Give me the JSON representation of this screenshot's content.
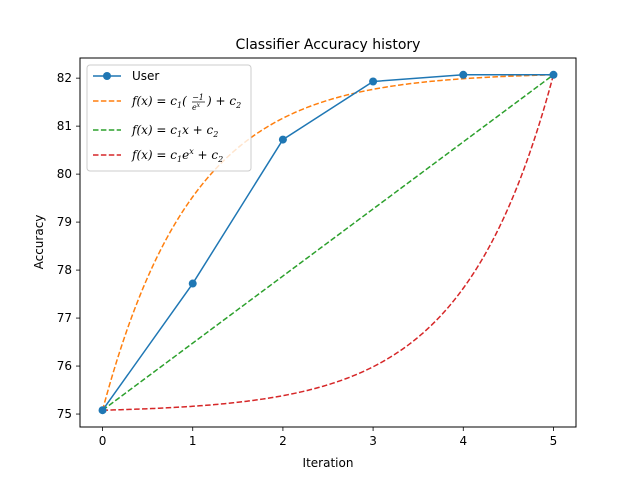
{
  "chart_data": {
    "type": "line",
    "title": "Classifier Accuracy history",
    "xlabel": "Iteration",
    "ylabel": "Accuracy",
    "xlim": [
      -0.25,
      5.25
    ],
    "ylim": [
      74.73,
      82.42
    ],
    "xticks": [
      0,
      1,
      2,
      3,
      4,
      5
    ],
    "yticks": [
      75,
      76,
      77,
      78,
      79,
      80,
      81,
      82
    ],
    "grid": false,
    "legend_position": "top-left",
    "series": [
      {
        "name": "User",
        "style": "solid-markers",
        "color": "#1f77b4",
        "x": [
          0,
          1,
          2,
          3,
          4,
          5
        ],
        "y": [
          75.08,
          77.72,
          80.72,
          81.93,
          82.07,
          82.07
        ]
      },
      {
        "name": "f(x) = c1(-1/e^x) + c2",
        "style": "dashed",
        "color": "#ff7f0e",
        "function": "neg_exp",
        "x_range": [
          0,
          5
        ],
        "y_start": 75.08,
        "y_end": 82.07
      },
      {
        "name": "f(x) = c1x + c2",
        "style": "dashed",
        "color": "#2ca02c",
        "function": "linear",
        "x_range": [
          0,
          5
        ],
        "y_start": 75.08,
        "y_end": 82.07
      },
      {
        "name": "f(x) = c1e^x + c2",
        "style": "dashed",
        "color": "#d62728",
        "function": "exp",
        "x_range": [
          0,
          5
        ],
        "y_start": 75.08,
        "y_end": 82.07
      }
    ]
  },
  "legend": {
    "user": "User",
    "fit_neg_exp": {
      "prefix": "f(x) = c",
      "sub1": "1",
      "mid": "(",
      "frac_num": "−1",
      "frac_den": "e",
      "frac_den_sup": "x",
      "close": ") + c",
      "sub2": "2"
    },
    "fit_linear": {
      "prefix": "f(x) = c",
      "sub1": "1",
      "mid": "x + c",
      "sub2": "2"
    },
    "fit_exp": {
      "prefix": "f(x) = c",
      "sub1": "1",
      "mid": "e",
      "sup": "x",
      "tail": " + c",
      "sub2": "2"
    }
  }
}
